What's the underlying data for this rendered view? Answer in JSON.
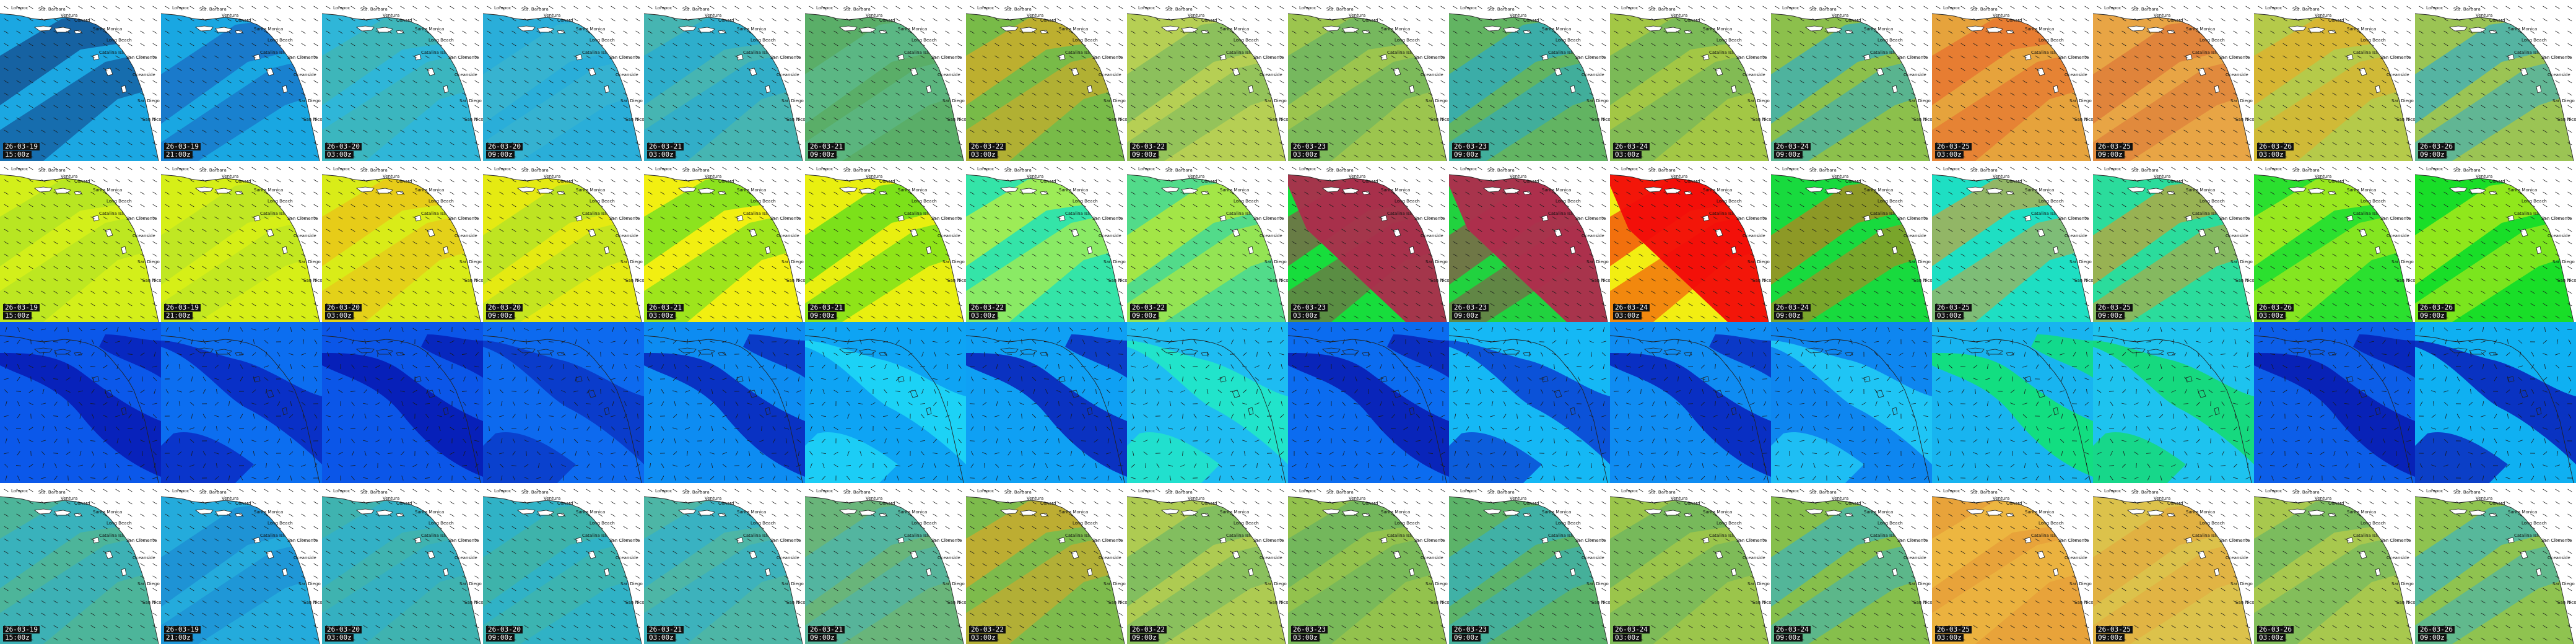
{
  "rows": [
    {
      "panels": [
        {
          "date": "26-03-19",
          "time": "15:00z",
          "color": "#1ba7e2",
          "accent": "#12296e",
          "variant": 0
        },
        {
          "date": "26-03-19",
          "time": "21:00z",
          "color": "#19a7e2",
          "accent": "#1b55b8",
          "variant": 1
        },
        {
          "date": "26-03-20",
          "time": "03:00z",
          "color": "#2fb6d8",
          "accent": "#4bb6a2",
          "variant": 0
        },
        {
          "date": "26-03-20",
          "time": "09:00z",
          "color": "#2aaed9",
          "accent": "#42b8c8",
          "variant": 1
        },
        {
          "date": "26-03-21",
          "time": "03:00z",
          "color": "#46b5b2",
          "accent": "#1ba7e2",
          "variant": 0
        },
        {
          "date": "26-03-21",
          "time": "09:00z",
          "color": "#5aae68",
          "accent": "#5dbf9a",
          "variant": 1
        },
        {
          "date": "26-03-22",
          "time": "03:00z",
          "color": "#78bb48",
          "accent": "#f6a51b",
          "variant": 0
        },
        {
          "date": "26-03-22",
          "time": "09:00z",
          "color": "#b6cf54",
          "accent": "#6ab462",
          "variant": 1
        },
        {
          "date": "26-03-23",
          "time": "03:00z",
          "color": "#9cc54e",
          "accent": "#57ad6b",
          "variant": 0
        },
        {
          "date": "26-03-23",
          "time": "09:00z",
          "color": "#62b462",
          "accent": "#1ba7e2",
          "variant": 1
        },
        {
          "date": "26-03-24",
          "time": "03:00z",
          "color": "#a3c745",
          "accent": "#5bae66",
          "variant": 0
        },
        {
          "date": "26-03-24",
          "time": "09:00z",
          "color": "#8cc04c",
          "accent": "#1ba7e2",
          "variant": 1
        },
        {
          "date": "26-03-25",
          "time": "03:00z",
          "color": "#e6a33c",
          "accent": "#e75e2a",
          "variant": 0
        },
        {
          "date": "26-03-25",
          "time": "09:00z",
          "color": "#e8a545",
          "accent": "#d96a33",
          "variant": 1
        },
        {
          "date": "26-03-26",
          "time": "03:00z",
          "color": "#b5ca4a",
          "accent": "#f2a621",
          "variant": 0
        },
        {
          "date": "26-03-26",
          "time": "09:00z",
          "color": "#9bc454",
          "accent": "#1ba7e2",
          "variant": 1
        }
      ]
    },
    {
      "panels": [
        {
          "date": "26-03-19",
          "time": "15:00z",
          "color": "#d3ef1a",
          "accent": "#a2de2a",
          "variant": 0
        },
        {
          "date": "26-03-19",
          "time": "21:00z",
          "color": "#d6ef17",
          "accent": "#aee02d",
          "variant": 1
        },
        {
          "date": "26-03-20",
          "time": "03:00z",
          "color": "#d9ec18",
          "accent": "#f2b21a",
          "variant": 0
        },
        {
          "date": "26-03-20",
          "time": "09:00z",
          "color": "#e5ea12",
          "accent": "#9edf30",
          "variant": 1
        },
        {
          "date": "26-03-21",
          "time": "03:00z",
          "color": "#f2ef11",
          "accent": "#38d92a",
          "variant": 0
        },
        {
          "date": "26-03-21",
          "time": "09:00z",
          "color": "#e9ef10",
          "accent": "#22d623",
          "variant": 1
        },
        {
          "date": "26-03-22",
          "time": "03:00z",
          "color": "#34e4a8",
          "accent": "#f4f214",
          "variant": 0
        },
        {
          "date": "26-03-22",
          "time": "09:00z",
          "color": "#52db8a",
          "accent": "#e5ef11",
          "variant": 1
        },
        {
          "date": "26-03-23",
          "time": "03:00z",
          "color": "#17dd3c",
          "accent": "#ac2c4c",
          "variant": 0
        },
        {
          "date": "26-03-23",
          "time": "09:00z",
          "color": "#21d23f",
          "accent": "#b02b4d",
          "variant": 1
        },
        {
          "date": "26-03-24",
          "time": "03:00z",
          "color": "#f2ee12",
          "accent": "#f20a0a",
          "variant": 0
        },
        {
          "date": "26-03-24",
          "time": "09:00z",
          "color": "#18da3e",
          "accent": "#ef6413",
          "variant": 1
        },
        {
          "date": "26-03-25",
          "time": "03:00z",
          "color": "#1edfc3",
          "accent": "#f3941a",
          "variant": 0
        },
        {
          "date": "26-03-25",
          "time": "09:00z",
          "color": "#2bdc9c",
          "accent": "#f38f18",
          "variant": 1
        },
        {
          "date": "26-03-26",
          "time": "03:00z",
          "color": "#2be02f",
          "accent": "#f2ee12",
          "variant": 0
        },
        {
          "date": "26-03-26",
          "time": "09:00z",
          "color": "#19de28",
          "accent": "#f3ee12",
          "variant": 1
        }
      ]
    },
    {
      "panels": [
        {
          "color": "#0b58ea",
          "accent": "#0820b8",
          "variant": 0
        },
        {
          "color": "#0c6ef0",
          "accent": "#0a2cc4",
          "variant": 1
        },
        {
          "color": "#0b56e8",
          "accent": "#071eb6",
          "variant": 0
        },
        {
          "color": "#0d6aef",
          "accent": "#0b3ac8",
          "variant": 1
        },
        {
          "color": "#0d8cf2",
          "accent": "#0a2dc0",
          "variant": 0
        },
        {
          "color": "#0ea4f4",
          "accent": "#1ed5f6",
          "variant": 1
        },
        {
          "color": "#0fa0f4",
          "accent": "#0b2cbe",
          "variant": 0
        },
        {
          "color": "#1ebcf2",
          "accent": "#22e6c8",
          "variant": 1
        },
        {
          "color": "#0b6cf0",
          "accent": "#0a22b6",
          "variant": 0
        },
        {
          "color": "#15b8f5",
          "accent": "#0b4cd6",
          "variant": 1
        },
        {
          "color": "#0f8cf2",
          "accent": "#0a2ac0",
          "variant": 0
        },
        {
          "color": "#0e86f0",
          "accent": "#21c8f4",
          "variant": 1
        },
        {
          "color": "#18b4f0",
          "accent": "#12e07a",
          "variant": 0
        },
        {
          "color": "#1ec3ef",
          "accent": "#16da78",
          "variant": 1
        },
        {
          "color": "#0c5ee8",
          "accent": "#081fb4",
          "variant": 0
        },
        {
          "color": "#0fb0f2",
          "accent": "#0a2cbf",
          "variant": 1
        }
      ]
    },
    {
      "panels": [
        {
          "date": "26-03-19",
          "time": "15:00z",
          "color": "#4db59a",
          "accent": "#2aaed8",
          "variant": 0
        },
        {
          "date": "26-03-19",
          "time": "21:00z",
          "color": "#24abdc",
          "accent": "#1a7fd0",
          "variant": 1
        },
        {
          "date": "26-03-20",
          "time": "03:00z",
          "color": "#3fb3b0",
          "accent": "#2aaed8",
          "variant": 0
        },
        {
          "date": "26-03-20",
          "time": "09:00z",
          "color": "#30b2c6",
          "accent": "#4bb596",
          "variant": 1
        },
        {
          "date": "26-03-21",
          "time": "03:00z",
          "color": "#4db6a6",
          "accent": "#2aaed8",
          "variant": 0
        },
        {
          "date": "26-03-21",
          "time": "09:00z",
          "color": "#69b57a",
          "accent": "#42b4c0",
          "variant": 1
        },
        {
          "date": "26-03-22",
          "time": "03:00z",
          "color": "#7dbb4c",
          "accent": "#f3a21d",
          "variant": 0
        },
        {
          "date": "26-03-22",
          "time": "09:00z",
          "color": "#aecb52",
          "accent": "#5fb46a",
          "variant": 1
        },
        {
          "date": "26-03-23",
          "time": "03:00z",
          "color": "#93c24d",
          "accent": "#5aaf69",
          "variant": 0
        },
        {
          "date": "26-03-23",
          "time": "09:00z",
          "color": "#5cb369",
          "accent": "#2aaed8",
          "variant": 1
        },
        {
          "date": "26-03-24",
          "time": "03:00z",
          "color": "#9bc54b",
          "accent": "#5aaf69",
          "variant": 0
        },
        {
          "date": "26-03-24",
          "time": "09:00z",
          "color": "#86bf4c",
          "accent": "#2aaed8",
          "variant": 1
        },
        {
          "date": "26-03-25",
          "time": "03:00z",
          "color": "#e8a33a",
          "accent": "#f0c646",
          "variant": 0
        },
        {
          "date": "26-03-25",
          "time": "09:00z",
          "color": "#dcc24b",
          "accent": "#e6a43c",
          "variant": 1
        },
        {
          "date": "26-03-26",
          "time": "03:00z",
          "color": "#a8c84e",
          "accent": "#56b26c",
          "variant": 0
        },
        {
          "date": "26-03-26",
          "time": "09:00z",
          "color": "#8fc350",
          "accent": "#2aaed8",
          "variant": 1
        }
      ]
    }
  ],
  "place_labels": {
    "lompoc": "Lompoc",
    "santa_barbara": "Sta. Barbara",
    "ventura": "Ventura",
    "santa_monica": "Santa Monica",
    "oxnard": "Oxnard",
    "long_beach": "Long Beach",
    "santa_catalina": "Catalina Isl.",
    "san_clemente": "San Clemente",
    "oceanside": "Oceanside",
    "san_diego": "San Diego",
    "ensenada": "San Nicolas"
  }
}
